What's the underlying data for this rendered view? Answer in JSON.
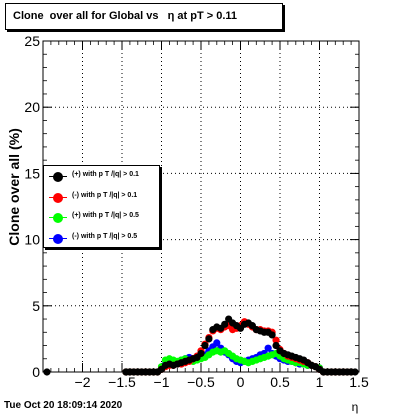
{
  "chart_data": {
    "type": "scatter",
    "title": "Clone  over all for Global vs   η at pT > 0.11",
    "xlabel": "η",
    "ylabel": "Clone  over all (%)",
    "xlim": [
      -2.5,
      1.5
    ],
    "ylim": [
      0,
      25
    ],
    "x_ticks": [
      "−2",
      "−1.5",
      "−1",
      "−0.5",
      "0",
      "0.5",
      "1",
      "1.5"
    ],
    "x_tick_values": [
      -2,
      -1.5,
      -1,
      -0.5,
      0,
      0.5,
      1,
      1.5
    ],
    "y_ticks": [
      "0",
      "5",
      "10",
      "15",
      "20",
      "25"
    ],
    "y_tick_values": [
      0,
      5,
      10,
      15,
      20,
      25
    ],
    "grid": true,
    "legend_position": "left",
    "series": [
      {
        "name": "(+) with p T /|q| > 0.1",
        "color": "#000000",
        "points": [
          [
            -2.45,
            0
          ],
          [
            -1.45,
            0
          ],
          [
            -1.4,
            0
          ],
          [
            -1.35,
            0
          ],
          [
            -1.3,
            0
          ],
          [
            -1.25,
            0
          ],
          [
            -1.2,
            0
          ],
          [
            -1.15,
            0
          ],
          [
            -1.1,
            0
          ],
          [
            -1.05,
            0
          ],
          [
            -1.0,
            0.2
          ],
          [
            -0.95,
            0.5
          ],
          [
            -0.9,
            0.6
          ],
          [
            -0.85,
            0.5
          ],
          [
            -0.8,
            0.6
          ],
          [
            -0.75,
            0.7
          ],
          [
            -0.7,
            0.8
          ],
          [
            -0.65,
            0.9
          ],
          [
            -0.6,
            1.0
          ],
          [
            -0.55,
            1.1
          ],
          [
            -0.5,
            1.4
          ],
          [
            -0.45,
            2.0
          ],
          [
            -0.4,
            2.5
          ],
          [
            -0.35,
            3.2
          ],
          [
            -0.3,
            3.4
          ],
          [
            -0.25,
            3.3
          ],
          [
            -0.2,
            3.6
          ],
          [
            -0.15,
            4.0
          ],
          [
            -0.1,
            3.7
          ],
          [
            -0.05,
            3.5
          ],
          [
            0.0,
            3.3
          ],
          [
            0.05,
            3.6
          ],
          [
            0.1,
            3.7
          ],
          [
            0.15,
            3.5
          ],
          [
            0.2,
            3.2
          ],
          [
            0.25,
            3.1
          ],
          [
            0.3,
            3.0
          ],
          [
            0.35,
            3.0
          ],
          [
            0.4,
            2.8
          ],
          [
            0.45,
            2.0
          ],
          [
            0.5,
            1.6
          ],
          [
            0.55,
            1.4
          ],
          [
            0.6,
            1.3
          ],
          [
            0.65,
            1.2
          ],
          [
            0.7,
            1.1
          ],
          [
            0.75,
            1.0
          ],
          [
            0.8,
            0.9
          ],
          [
            0.85,
            0.7
          ],
          [
            0.9,
            0.5
          ],
          [
            0.95,
            0.4
          ],
          [
            1.0,
            0.2
          ],
          [
            1.05,
            0
          ],
          [
            1.1,
            0
          ],
          [
            1.15,
            0
          ],
          [
            1.2,
            0
          ],
          [
            1.25,
            0
          ],
          [
            1.3,
            0
          ],
          [
            1.35,
            0
          ],
          [
            1.4,
            0
          ],
          [
            1.45,
            0
          ]
        ]
      },
      {
        "name": "(-) with p T /|q| > 0.1",
        "color": "#ff0000",
        "points": [
          [
            -1.45,
            0
          ],
          [
            -1.4,
            0
          ],
          [
            -1.35,
            0
          ],
          [
            -1.3,
            0
          ],
          [
            -1.25,
            0
          ],
          [
            -1.2,
            0
          ],
          [
            -1.15,
            0
          ],
          [
            -1.1,
            0
          ],
          [
            -1.05,
            0
          ],
          [
            -1.0,
            0.2
          ],
          [
            -0.95,
            0.4
          ],
          [
            -0.9,
            0.5
          ],
          [
            -0.85,
            0.5
          ],
          [
            -0.8,
            0.6
          ],
          [
            -0.75,
            0.6
          ],
          [
            -0.7,
            0.7
          ],
          [
            -0.65,
            0.8
          ],
          [
            -0.6,
            1.0
          ],
          [
            -0.55,
            1.2
          ],
          [
            -0.5,
            1.6
          ],
          [
            -0.45,
            2.1
          ],
          [
            -0.4,
            2.6
          ],
          [
            -0.35,
            3.1
          ],
          [
            -0.3,
            3.3
          ],
          [
            -0.25,
            3.2
          ],
          [
            -0.2,
            3.4
          ],
          [
            -0.15,
            3.5
          ],
          [
            -0.1,
            3.2
          ],
          [
            -0.05,
            3.3
          ],
          [
            0.0,
            3.5
          ],
          [
            0.05,
            3.8
          ],
          [
            0.1,
            3.6
          ],
          [
            0.15,
            3.4
          ],
          [
            0.2,
            3.2
          ],
          [
            0.25,
            3.2
          ],
          [
            0.3,
            3.1
          ],
          [
            0.35,
            3.1
          ],
          [
            0.4,
            3.0
          ],
          [
            0.45,
            2.4
          ],
          [
            0.5,
            1.7
          ],
          [
            0.55,
            1.4
          ],
          [
            0.6,
            1.2
          ],
          [
            0.65,
            1.1
          ],
          [
            0.7,
            1.0
          ],
          [
            0.75,
            0.9
          ],
          [
            0.8,
            0.8
          ],
          [
            0.85,
            0.7
          ],
          [
            0.9,
            0.5
          ],
          [
            0.95,
            0.4
          ],
          [
            1.0,
            0.2
          ],
          [
            1.05,
            0
          ],
          [
            1.1,
            0
          ],
          [
            1.15,
            0
          ],
          [
            1.2,
            0
          ],
          [
            1.25,
            0
          ],
          [
            1.3,
            0
          ],
          [
            1.35,
            0
          ],
          [
            1.4,
            0
          ]
        ]
      },
      {
        "name": "(+) with p T /|q| > 0.5",
        "color": "#00ff00",
        "points": [
          [
            -1.45,
            0
          ],
          [
            -1.4,
            0
          ],
          [
            -1.35,
            0
          ],
          [
            -1.3,
            0
          ],
          [
            -1.25,
            0
          ],
          [
            -1.2,
            0
          ],
          [
            -1.15,
            0
          ],
          [
            -1.1,
            0
          ],
          [
            -1.05,
            0
          ],
          [
            -1.0,
            0.4
          ],
          [
            -0.95,
            0.9
          ],
          [
            -0.9,
            1.0
          ],
          [
            -0.85,
            0.9
          ],
          [
            -0.8,
            0.8
          ],
          [
            -0.75,
            0.9
          ],
          [
            -0.7,
            1.0
          ],
          [
            -0.65,
            0.9
          ],
          [
            -0.6,
            0.8
          ],
          [
            -0.55,
            0.9
          ],
          [
            -0.5,
            1.0
          ],
          [
            -0.45,
            1.1
          ],
          [
            -0.4,
            1.3
          ],
          [
            -0.35,
            1.5
          ],
          [
            -0.3,
            1.6
          ],
          [
            -0.25,
            1.5
          ],
          [
            -0.2,
            1.6
          ],
          [
            -0.15,
            1.4
          ],
          [
            -0.1,
            1.2
          ],
          [
            -0.05,
            1.0
          ],
          [
            0.0,
            0.9
          ],
          [
            0.05,
            0.8
          ],
          [
            0.1,
            0.7
          ],
          [
            0.15,
            0.8
          ],
          [
            0.2,
            0.9
          ],
          [
            0.25,
            1.0
          ],
          [
            0.3,
            1.1
          ],
          [
            0.35,
            1.2
          ],
          [
            0.4,
            1.3
          ],
          [
            0.45,
            1.4
          ],
          [
            0.5,
            1.2
          ],
          [
            0.55,
            1.0
          ],
          [
            0.6,
            0.9
          ],
          [
            0.65,
            0.8
          ],
          [
            0.7,
            0.7
          ],
          [
            0.75,
            0.7
          ],
          [
            0.8,
            0.6
          ],
          [
            0.85,
            0.5
          ],
          [
            0.9,
            0.5
          ],
          [
            0.95,
            0.4
          ],
          [
            1.0,
            0.3
          ],
          [
            1.05,
            0
          ],
          [
            1.1,
            0
          ],
          [
            1.15,
            0
          ],
          [
            1.2,
            0
          ],
          [
            1.25,
            0
          ],
          [
            1.3,
            0
          ],
          [
            1.35,
            0
          ],
          [
            1.4,
            0
          ]
        ]
      },
      {
        "name": "(-) with p T /|q| > 0.5",
        "color": "#0000ff",
        "points": [
          [
            -1.45,
            0
          ],
          [
            -1.4,
            0
          ],
          [
            -1.35,
            0
          ],
          [
            -1.3,
            0
          ],
          [
            -1.25,
            0
          ],
          [
            -1.2,
            0
          ],
          [
            -1.15,
            0
          ],
          [
            -1.1,
            0
          ],
          [
            -1.05,
            0
          ],
          [
            -1.0,
            0.3
          ],
          [
            -0.95,
            0.6
          ],
          [
            -0.9,
            0.7
          ],
          [
            -0.85,
            0.6
          ],
          [
            -0.8,
            0.7
          ],
          [
            -0.75,
            0.9
          ],
          [
            -0.7,
            1.0
          ],
          [
            -0.65,
            1.1
          ],
          [
            -0.6,
            1.0
          ],
          [
            -0.55,
            1.0
          ],
          [
            -0.5,
            1.1
          ],
          [
            -0.45,
            1.3
          ],
          [
            -0.4,
            1.6
          ],
          [
            -0.35,
            1.9
          ],
          [
            -0.3,
            2.2
          ],
          [
            -0.25,
            1.8
          ],
          [
            -0.2,
            1.5
          ],
          [
            -0.15,
            1.3
          ],
          [
            -0.1,
            1.0
          ],
          [
            -0.05,
            0.8
          ],
          [
            0.0,
            0.7
          ],
          [
            0.05,
            0.8
          ],
          [
            0.1,
            0.9
          ],
          [
            0.15,
            1.0
          ],
          [
            0.2,
            1.1
          ],
          [
            0.25,
            1.3
          ],
          [
            0.3,
            1.4
          ],
          [
            0.35,
            1.8
          ],
          [
            0.4,
            1.4
          ],
          [
            0.45,
            1.2
          ],
          [
            0.5,
            1.0
          ],
          [
            0.55,
            0.9
          ],
          [
            0.6,
            0.8
          ],
          [
            0.65,
            0.8
          ],
          [
            0.7,
            0.7
          ],
          [
            0.75,
            0.6
          ],
          [
            0.8,
            0.6
          ],
          [
            0.85,
            0.5
          ],
          [
            0.9,
            0.5
          ],
          [
            0.95,
            0.4
          ],
          [
            1.0,
            0.3
          ],
          [
            1.05,
            0
          ],
          [
            1.1,
            0
          ],
          [
            1.15,
            0
          ],
          [
            1.2,
            0
          ],
          [
            1.25,
            0
          ],
          [
            1.3,
            0
          ],
          [
            1.35,
            0
          ],
          [
            1.4,
            0
          ]
        ]
      }
    ]
  },
  "timestamp": "Tue Oct 20 18:09:14 2020"
}
